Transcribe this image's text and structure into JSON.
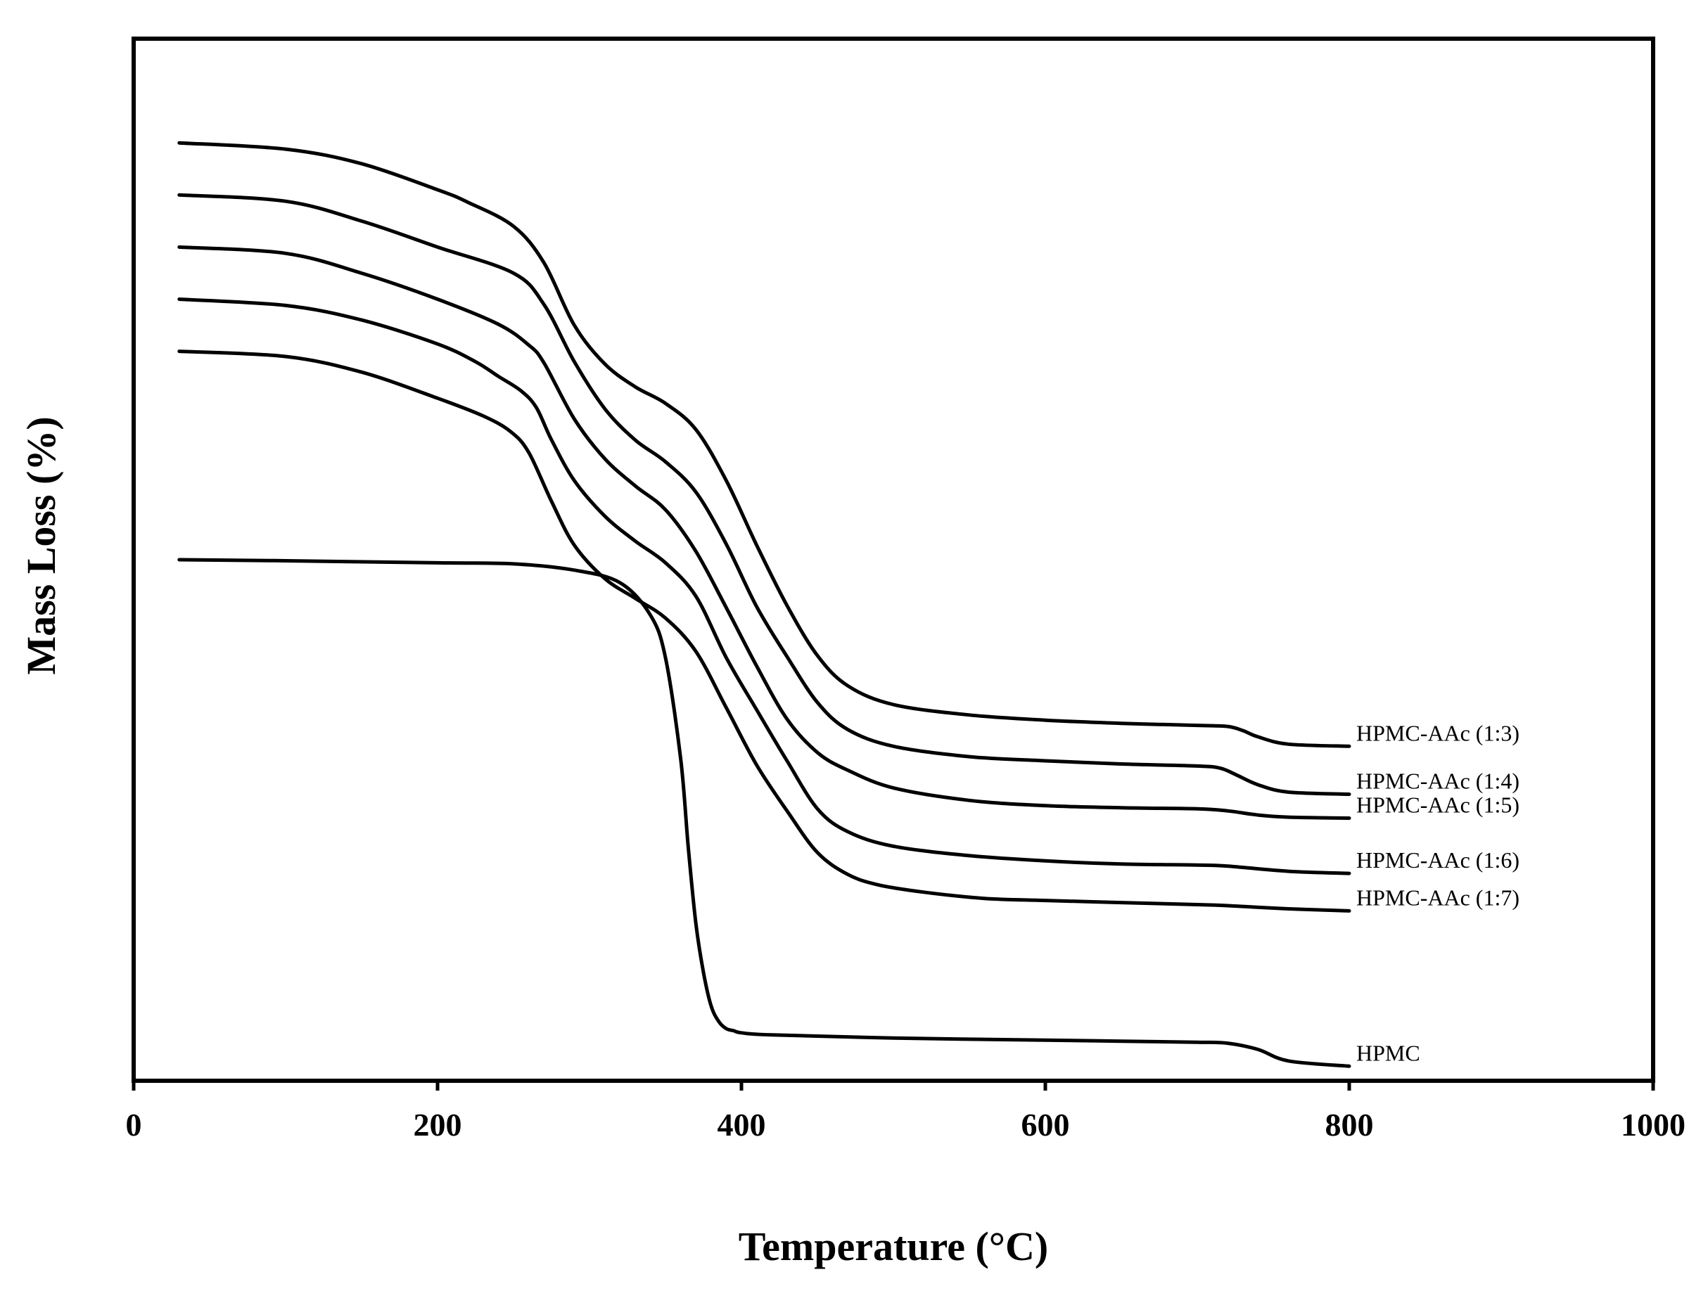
{
  "chart_data": {
    "type": "line",
    "title": "",
    "xlabel": "Temperature (°C)",
    "ylabel": "Mass Loss (%)",
    "xlim": [
      0,
      1000
    ],
    "ylim": [
      0,
      100
    ],
    "xticks": [
      "0",
      "200",
      "400",
      "600",
      "800",
      "1000"
    ],
    "x_tick_values": [
      0,
      200,
      400,
      600,
      800,
      1000
    ],
    "grid": false,
    "legend": "inline labels at right end of each curve",
    "y_tick_labels_shown": false,
    "colors": {
      "line": "#000000",
      "background": "#ffffff"
    },
    "series": [
      {
        "name": "HPMC-AAc (1:3)",
        "x": [
          30,
          100,
          150,
          200,
          220,
          250,
          270,
          290,
          310,
          330,
          350,
          370,
          390,
          410,
          430,
          450,
          470,
          500,
          550,
          600,
          650,
          700,
          720,
          730,
          740,
          760,
          800
        ],
        "y": [
          90.0,
          89.4,
          88.0,
          85.5,
          84.3,
          82.0,
          78.5,
          72.5,
          68.8,
          66.6,
          65.0,
          62.5,
          57.6,
          51.4,
          45.6,
          40.8,
          37.9,
          36.1,
          35.1,
          34.6,
          34.3,
          34.1,
          34.0,
          33.6,
          33.0,
          32.3,
          32.1
        ]
      },
      {
        "name": "HPMC-AAc (1:4)",
        "x": [
          30,
          100,
          150,
          200,
          250,
          270,
          290,
          310,
          330,
          350,
          370,
          390,
          410,
          430,
          450,
          470,
          500,
          550,
          600,
          650,
          700,
          715,
          725,
          740,
          760,
          800
        ],
        "y": [
          85.0,
          84.4,
          82.5,
          80.0,
          77.5,
          74.5,
          69.0,
          64.5,
          61.5,
          59.4,
          56.5,
          51.5,
          45.5,
          40.7,
          36.3,
          33.7,
          32.1,
          31.1,
          30.7,
          30.4,
          30.2,
          30.0,
          29.4,
          28.4,
          27.7,
          27.5
        ]
      },
      {
        "name": "HPMC-AAc (1:5)",
        "x": [
          30,
          100,
          150,
          200,
          240,
          260,
          270,
          290,
          310,
          330,
          350,
          370,
          390,
          410,
          430,
          450,
          470,
          500,
          550,
          600,
          650,
          700,
          720,
          740,
          760,
          800
        ],
        "y": [
          80.0,
          79.4,
          77.5,
          75.0,
          72.6,
          70.6,
          68.9,
          63.5,
          59.7,
          57.1,
          54.8,
          50.8,
          45.4,
          39.8,
          34.7,
          31.5,
          29.8,
          28.1,
          26.9,
          26.4,
          26.2,
          26.1,
          25.9,
          25.5,
          25.3,
          25.2
        ]
      },
      {
        "name": "HPMC-AAc (1:6)",
        "x": [
          30,
          100,
          150,
          200,
          225,
          240,
          255,
          265,
          275,
          290,
          310,
          330,
          350,
          370,
          390,
          410,
          430,
          450,
          470,
          500,
          550,
          600,
          650,
          700,
          720,
          760,
          800
        ],
        "y": [
          75.0,
          74.4,
          73.0,
          70.7,
          69.0,
          67.6,
          66.2,
          64.6,
          61.5,
          57.6,
          54.2,
          51.8,
          49.7,
          46.5,
          40.6,
          35.6,
          30.7,
          26.1,
          23.9,
          22.5,
          21.6,
          21.1,
          20.8,
          20.7,
          20.6,
          20.1,
          19.9
        ]
      },
      {
        "name": "HPMC-AAc (1:7)",
        "x": [
          30,
          100,
          150,
          200,
          230,
          248,
          260,
          275,
          290,
          310,
          330,
          350,
          370,
          390,
          410,
          430,
          450,
          470,
          490,
          520,
          560,
          600,
          650,
          700,
          720,
          760,
          800
        ],
        "y": [
          70.0,
          69.5,
          68.0,
          65.5,
          63.8,
          62.3,
          60.3,
          55.6,
          51.4,
          48.2,
          46.3,
          44.4,
          41.2,
          35.8,
          30.3,
          25.9,
          21.9,
          19.8,
          18.8,
          18.1,
          17.5,
          17.3,
          17.1,
          16.9,
          16.8,
          16.5,
          16.3
        ]
      },
      {
        "name": "HPMC",
        "x": [
          30,
          100,
          200,
          250,
          290,
          320,
          340,
          350,
          360,
          365,
          370,
          375,
          380,
          385,
          390,
          395,
          400,
          420,
          500,
          600,
          650,
          700,
          720,
          740,
          760,
          800
        ],
        "y": [
          50.0,
          49.9,
          49.7,
          49.6,
          49.0,
          47.8,
          44.7,
          40.6,
          30.9,
          22.4,
          15.1,
          10.4,
          7.2,
          5.7,
          5.0,
          4.8,
          4.6,
          4.4,
          4.1,
          3.9,
          3.8,
          3.7,
          3.6,
          3.0,
          1.9,
          1.4
        ]
      }
    ]
  }
}
